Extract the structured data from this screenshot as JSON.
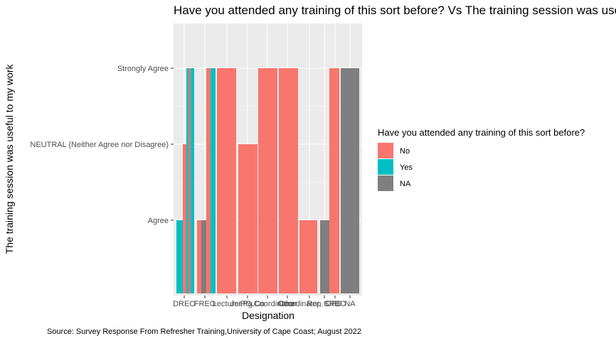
{
  "chart_data": {
    "type": "bar",
    "title": "Have you attended any training of this sort before? Vs The training session was useful to my work",
    "xlabel": "Designation",
    "ylabel": "The training session was useful to my work",
    "caption": "Source: Survey Response From Refresher Training,University of Cape Coast; August 2022",
    "y_categories": [
      "Agree",
      "NEUTRAL (Neither Agree nor Disagree)",
      "Strongly Agree"
    ],
    "x_tick_labels": [
      "DREO",
      "FREO",
      "Lecturer",
      "Jnr.Pg.Co",
      "PG.Coordinator",
      "Other",
      "Coordinator, CPD",
      "Rep. CPD",
      "SREO",
      "NA"
    ],
    "legend": {
      "title": "Have you attended any training of this sort before?",
      "position": "right",
      "entries": [
        {
          "label": "No",
          "color": "#F8766D"
        },
        {
          "label": "Yes",
          "color": "#00BFC4"
        },
        {
          "label": "NA",
          "color": "#7F7F7F"
        }
      ]
    },
    "bars": [
      {
        "category": "DREO",
        "group": "Yes",
        "value": "Agree"
      },
      {
        "category": "DREO",
        "group": "No",
        "value": "NEUTRAL (Neither Agree nor Disagree)"
      },
      {
        "category": "DREO",
        "group": "Yes",
        "value": "Strongly Agree"
      },
      {
        "category": "DREO",
        "group": "No",
        "value": "Strongly Agree"
      },
      {
        "category": "DREO",
        "group": "Yes",
        "value": "Strongly Agree"
      },
      {
        "category": "FREO",
        "group": "No",
        "value": "Agree"
      },
      {
        "category": "FREO",
        "group": "NA",
        "value": "Agree"
      },
      {
        "category": "FREO",
        "group": "No",
        "value": "Strongly Agree"
      },
      {
        "category": "FREO",
        "group": "Yes",
        "value": "Strongly Agree"
      },
      {
        "category": "Lecturer",
        "group": "No",
        "value": "Strongly Agree"
      },
      {
        "category": "Jnr.Pg.Co",
        "group": "No",
        "value": "NEUTRAL (Neither Agree nor Disagree)"
      },
      {
        "category": "PG.Coordinator",
        "group": "No",
        "value": "Strongly Agree"
      },
      {
        "category": "Coordinator, CPD",
        "group": "No",
        "value": "Strongly Agree"
      },
      {
        "category": "Rep. CPD",
        "group": "No",
        "value": "Agree"
      },
      {
        "category": "Rep. CPD",
        "group": "NA",
        "value": "Agree"
      },
      {
        "category": "SREO",
        "group": "No",
        "value": "Strongly Agree"
      },
      {
        "category": "NA",
        "group": "NA",
        "value": "Strongly Agree"
      }
    ],
    "grid": true
  }
}
